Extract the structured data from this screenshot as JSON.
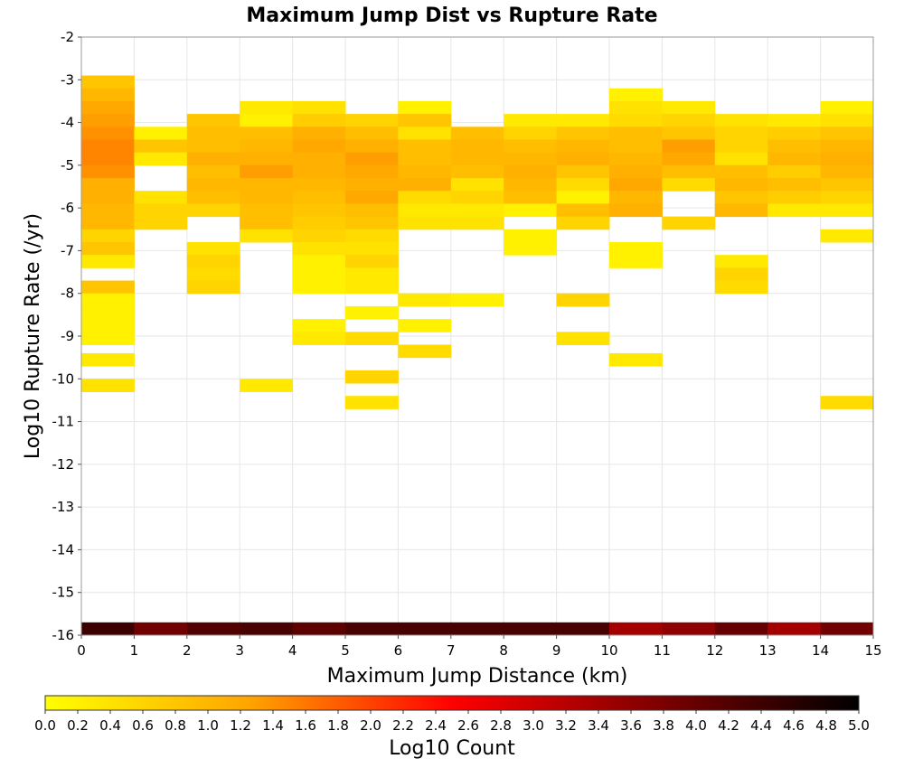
{
  "chart_data": {
    "type": "heatmap",
    "title": "Maximum Jump Dist vs Rupture Rate",
    "xlabel": "Maximum Jump Distance (km)",
    "ylabel": "Log10 Rupture Rate (/yr)",
    "xlim": [
      0,
      15
    ],
    "ylim": [
      -16,
      -2
    ],
    "x_ticks": [
      "0",
      "1",
      "2",
      "3",
      "4",
      "5",
      "6",
      "7",
      "8",
      "9",
      "10",
      "11",
      "12",
      "13",
      "14",
      "15"
    ],
    "y_ticks": [
      "-2",
      "-3",
      "-4",
      "-5",
      "-6",
      "-7",
      "-8",
      "-9",
      "-10",
      "-11",
      "-12",
      "-13",
      "-14",
      "-15",
      "-16"
    ],
    "colorbar": {
      "label": "Log10 Count",
      "range": [
        0.0,
        5.0
      ],
      "ticks": [
        "0.0",
        "0.2",
        "0.4",
        "0.6",
        "0.8",
        "1.0",
        "1.2",
        "1.4",
        "1.6",
        "1.8",
        "2.0",
        "2.2",
        "2.4",
        "2.6",
        "2.8",
        "3.0",
        "3.2",
        "3.4",
        "3.6",
        "3.8",
        "4.0",
        "4.2",
        "4.4",
        "4.6",
        "4.8",
        "5.0"
      ],
      "colors": [
        "#ffff00",
        "#ffa500",
        "#ff0000",
        "#800000",
        "#000000"
      ]
    },
    "x_bin_width": 1,
    "y_bin_height": 0.3,
    "cells": [
      [
        0,
        -16.0,
        4.4
      ],
      [
        1,
        -16.0,
        3.9
      ],
      [
        2,
        -16.0,
        4.2
      ],
      [
        3,
        -16.0,
        4.3
      ],
      [
        4,
        -16.0,
        4.1
      ],
      [
        5,
        -16.0,
        4.3
      ],
      [
        6,
        -16.0,
        4.3
      ],
      [
        7,
        -16.0,
        4.3
      ],
      [
        8,
        -16.0,
        4.3
      ],
      [
        9,
        -16.0,
        4.3
      ],
      [
        10,
        -16.0,
        3.4
      ],
      [
        11,
        -16.0,
        3.6
      ],
      [
        12,
        -16.0,
        4.0
      ],
      [
        13,
        -16.0,
        3.4
      ],
      [
        14,
        -16.0,
        3.9
      ],
      [
        0,
        -3.2,
        0.8
      ],
      [
        0,
        -3.5,
        1.0
      ],
      [
        0,
        -3.8,
        1.2
      ],
      [
        0,
        -4.1,
        1.3
      ],
      [
        0,
        -4.4,
        1.4
      ],
      [
        0,
        -4.7,
        1.5
      ],
      [
        0,
        -5.0,
        1.5
      ],
      [
        0,
        -5.3,
        1.4
      ],
      [
        0,
        -5.6,
        1.1
      ],
      [
        0,
        -5.9,
        1.1
      ],
      [
        0,
        -6.2,
        1.0
      ],
      [
        0,
        -6.5,
        1.0
      ],
      [
        0,
        -6.8,
        0.6
      ],
      [
        0,
        -7.1,
        0.8
      ],
      [
        0,
        -7.4,
        0.3
      ],
      [
        0,
        -8.0,
        0.8
      ],
      [
        0,
        -8.3,
        0.2
      ],
      [
        0,
        -8.6,
        0.2
      ],
      [
        0,
        -8.9,
        0.2
      ],
      [
        0,
        -9.2,
        0.2
      ],
      [
        0,
        -9.7,
        0.3
      ],
      [
        0,
        -10.3,
        0.4
      ],
      [
        1,
        -4.4,
        0.2
      ],
      [
        1,
        -4.7,
        0.8
      ],
      [
        1,
        -5.0,
        0.3
      ],
      [
        1,
        -5.9,
        0.4
      ],
      [
        1,
        -6.2,
        0.6
      ],
      [
        1,
        -6.5,
        0.6
      ],
      [
        2,
        -4.1,
        0.8
      ],
      [
        2,
        -4.4,
        0.9
      ],
      [
        2,
        -4.7,
        0.9
      ],
      [
        2,
        -5.0,
        1.1
      ],
      [
        2,
        -5.3,
        0.9
      ],
      [
        2,
        -5.6,
        1.0
      ],
      [
        2,
        -5.9,
        0.9
      ],
      [
        2,
        -6.2,
        0.6
      ],
      [
        2,
        -7.1,
        0.4
      ],
      [
        2,
        -7.4,
        0.6
      ],
      [
        2,
        -7.7,
        0.5
      ],
      [
        2,
        -8.0,
        0.6
      ],
      [
        3,
        -3.8,
        0.3
      ],
      [
        3,
        -4.1,
        0.2
      ],
      [
        3,
        -4.4,
        0.9
      ],
      [
        3,
        -4.7,
        1.0
      ],
      [
        3,
        -5.0,
        1.1
      ],
      [
        3,
        -5.3,
        1.3
      ],
      [
        3,
        -5.6,
        1.0
      ],
      [
        3,
        -5.9,
        1.0
      ],
      [
        3,
        -6.2,
        0.9
      ],
      [
        3,
        -6.5,
        0.9
      ],
      [
        3,
        -6.8,
        0.4
      ],
      [
        3,
        -10.3,
        0.3
      ],
      [
        4,
        -3.8,
        0.4
      ],
      [
        4,
        -4.1,
        0.7
      ],
      [
        4,
        -4.4,
        1.1
      ],
      [
        4,
        -4.7,
        1.2
      ],
      [
        4,
        -5.0,
        1.1
      ],
      [
        4,
        -5.3,
        1.1
      ],
      [
        4,
        -5.6,
        1.0
      ],
      [
        4,
        -5.9,
        0.9
      ],
      [
        4,
        -6.2,
        0.8
      ],
      [
        4,
        -6.5,
        0.7
      ],
      [
        4,
        -6.8,
        0.6
      ],
      [
        4,
        -7.1,
        0.4
      ],
      [
        4,
        -7.4,
        0.2
      ],
      [
        4,
        -7.7,
        0.2
      ],
      [
        4,
        -8.0,
        0.2
      ],
      [
        4,
        -8.9,
        0.2
      ],
      [
        4,
        -9.2,
        0.3
      ],
      [
        5,
        -4.1,
        0.6
      ],
      [
        5,
        -4.4,
        0.9
      ],
      [
        5,
        -4.7,
        1.1
      ],
      [
        5,
        -5.0,
        1.3
      ],
      [
        5,
        -5.3,
        1.2
      ],
      [
        5,
        -5.6,
        1.1
      ],
      [
        5,
        -5.9,
        1.2
      ],
      [
        5,
        -6.2,
        0.9
      ],
      [
        5,
        -6.5,
        0.8
      ],
      [
        5,
        -6.8,
        0.5
      ],
      [
        5,
        -7.1,
        0.4
      ],
      [
        5,
        -7.4,
        0.6
      ],
      [
        5,
        -7.7,
        0.3
      ],
      [
        5,
        -8.0,
        0.3
      ],
      [
        5,
        -8.6,
        0.2
      ],
      [
        5,
        -9.2,
        0.5
      ],
      [
        5,
        -10.1,
        0.6
      ],
      [
        5,
        -10.7,
        0.4
      ],
      [
        6,
        -3.8,
        0.2
      ],
      [
        6,
        -4.1,
        0.8
      ],
      [
        6,
        -4.4,
        0.4
      ],
      [
        6,
        -4.7,
        0.9
      ],
      [
        6,
        -5.0,
        0.9
      ],
      [
        6,
        -5.3,
        1.0
      ],
      [
        6,
        -5.6,
        1.1
      ],
      [
        6,
        -5.9,
        0.5
      ],
      [
        6,
        -6.2,
        0.3
      ],
      [
        6,
        -6.5,
        0.4
      ],
      [
        6,
        -8.3,
        0.3
      ],
      [
        6,
        -8.9,
        0.2
      ],
      [
        6,
        -9.5,
        0.5
      ],
      [
        7,
        -4.4,
        0.9
      ],
      [
        7,
        -4.7,
        1.0
      ],
      [
        7,
        -5.0,
        1.0
      ],
      [
        7,
        -5.3,
        0.9
      ],
      [
        7,
        -5.6,
        0.4
      ],
      [
        7,
        -5.9,
        0.6
      ],
      [
        7,
        -6.2,
        0.3
      ],
      [
        7,
        -6.5,
        0.4
      ],
      [
        7,
        -8.3,
        0.2
      ],
      [
        8,
        -4.1,
        0.3
      ],
      [
        8,
        -4.4,
        0.6
      ],
      [
        8,
        -4.7,
        0.9
      ],
      [
        8,
        -5.0,
        1.0
      ],
      [
        8,
        -5.3,
        1.1
      ],
      [
        8,
        -5.6,
        1.0
      ],
      [
        8,
        -5.9,
        0.9
      ],
      [
        8,
        -6.2,
        0.2
      ],
      [
        8,
        -6.8,
        0.2
      ],
      [
        8,
        -7.1,
        0.2
      ],
      [
        9,
        -4.1,
        0.3
      ],
      [
        9,
        -4.4,
        0.8
      ],
      [
        9,
        -4.7,
        1.0
      ],
      [
        9,
        -5.0,
        1.1
      ],
      [
        9,
        -5.3,
        0.8
      ],
      [
        9,
        -5.6,
        0.5
      ],
      [
        9,
        -5.9,
        0.2
      ],
      [
        9,
        -6.2,
        0.9
      ],
      [
        9,
        -6.5,
        0.6
      ],
      [
        9,
        -8.3,
        0.6
      ],
      [
        9,
        -9.2,
        0.4
      ],
      [
        10,
        -3.5,
        0.2
      ],
      [
        10,
        -3.8,
        0.4
      ],
      [
        10,
        -4.1,
        0.5
      ],
      [
        10,
        -4.4,
        0.9
      ],
      [
        10,
        -4.7,
        0.9
      ],
      [
        10,
        -5.0,
        1.0
      ],
      [
        10,
        -5.3,
        1.1
      ],
      [
        10,
        -5.6,
        1.2
      ],
      [
        10,
        -5.9,
        1.0
      ],
      [
        10,
        -6.2,
        1.1
      ],
      [
        10,
        -7.1,
        0.2
      ],
      [
        10,
        -7.4,
        0.2
      ],
      [
        10,
        -9.7,
        0.3
      ],
      [
        11,
        -3.8,
        0.3
      ],
      [
        11,
        -4.1,
        0.6
      ],
      [
        11,
        -4.4,
        0.8
      ],
      [
        11,
        -4.7,
        1.3
      ],
      [
        11,
        -5.0,
        1.2
      ],
      [
        11,
        -5.3,
        0.9
      ],
      [
        11,
        -5.6,
        0.5
      ],
      [
        11,
        -6.5,
        0.6
      ],
      [
        12,
        -4.1,
        0.4
      ],
      [
        12,
        -4.4,
        0.6
      ],
      [
        12,
        -4.7,
        0.6
      ],
      [
        12,
        -5.0,
        0.4
      ],
      [
        12,
        -5.3,
        0.9
      ],
      [
        12,
        -5.6,
        1.0
      ],
      [
        12,
        -5.9,
        0.8
      ],
      [
        12,
        -6.2,
        1.0
      ],
      [
        12,
        -7.4,
        0.3
      ],
      [
        12,
        -7.7,
        0.6
      ],
      [
        12,
        -8.0,
        0.5
      ],
      [
        13,
        -4.1,
        0.3
      ],
      [
        13,
        -4.4,
        0.7
      ],
      [
        13,
        -4.7,
        0.9
      ],
      [
        13,
        -5.0,
        1.0
      ],
      [
        13,
        -5.3,
        0.7
      ],
      [
        13,
        -5.6,
        0.9
      ],
      [
        13,
        -5.9,
        0.7
      ],
      [
        13,
        -6.2,
        0.3
      ],
      [
        14,
        -3.8,
        0.2
      ],
      [
        14,
        -4.1,
        0.4
      ],
      [
        14,
        -4.4,
        0.8
      ],
      [
        14,
        -4.7,
        1.0
      ],
      [
        14,
        -5.0,
        1.1
      ],
      [
        14,
        -5.3,
        1.0
      ],
      [
        14,
        -5.6,
        0.8
      ],
      [
        14,
        -5.9,
        0.6
      ],
      [
        14,
        -6.2,
        0.3
      ],
      [
        14,
        -6.8,
        0.3
      ],
      [
        14,
        -10.7,
        0.5
      ]
    ]
  }
}
